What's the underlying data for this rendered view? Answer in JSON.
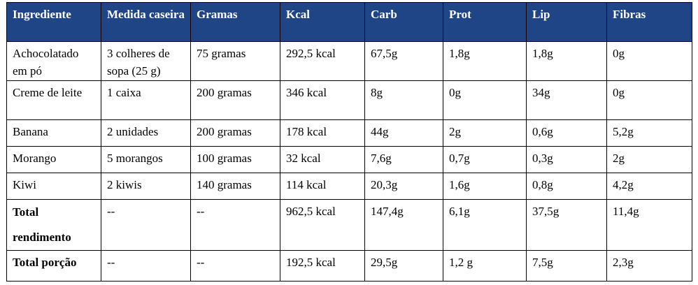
{
  "headers": [
    "Ingrediente",
    "Medida caseira",
    "Gramas",
    "Kcal",
    "Carb",
    "Prot",
    "Lip",
    "Fibras"
  ],
  "rows": [
    [
      "Achocolatado em pó",
      "3 colheres de sopa (25 g)",
      "75 gramas",
      "292,5 kcal",
      "67,5g",
      "1,8g",
      "1,8g",
      "0g"
    ],
    [
      "Creme de leite",
      "1 caixa",
      "200 gramas",
      "346 kcal",
      "8g",
      "0g",
      "34g",
      "0g"
    ],
    [
      "Banana",
      "2 unidades",
      "200 gramas",
      "178 kcal",
      "44g",
      "2g",
      "0,6g",
      "5,2g"
    ],
    [
      "Morango",
      "5 morangos",
      "100 gramas",
      "32 kcal",
      "7,6g",
      "0,7g",
      "0,3g",
      "2g"
    ],
    [
      "Kiwi",
      "2 kiwis",
      "140 gramas",
      "114 kcal",
      "20,3g",
      "1,6g",
      "0,8g",
      "4,2g"
    ],
    [
      "Total rendimento",
      "--",
      "--",
      "962,5 kcal",
      "147,4g",
      "6,1g",
      "37,5g",
      "11,4g"
    ],
    [
      "Total porção",
      "--",
      "--",
      "192,5 kcal",
      "29,5g",
      "1,2 g",
      "7,5g",
      "2,3g"
    ]
  ],
  "colors": {
    "header_bg": "#1f4587",
    "header_text": "#ffffff",
    "border": "#000000"
  }
}
